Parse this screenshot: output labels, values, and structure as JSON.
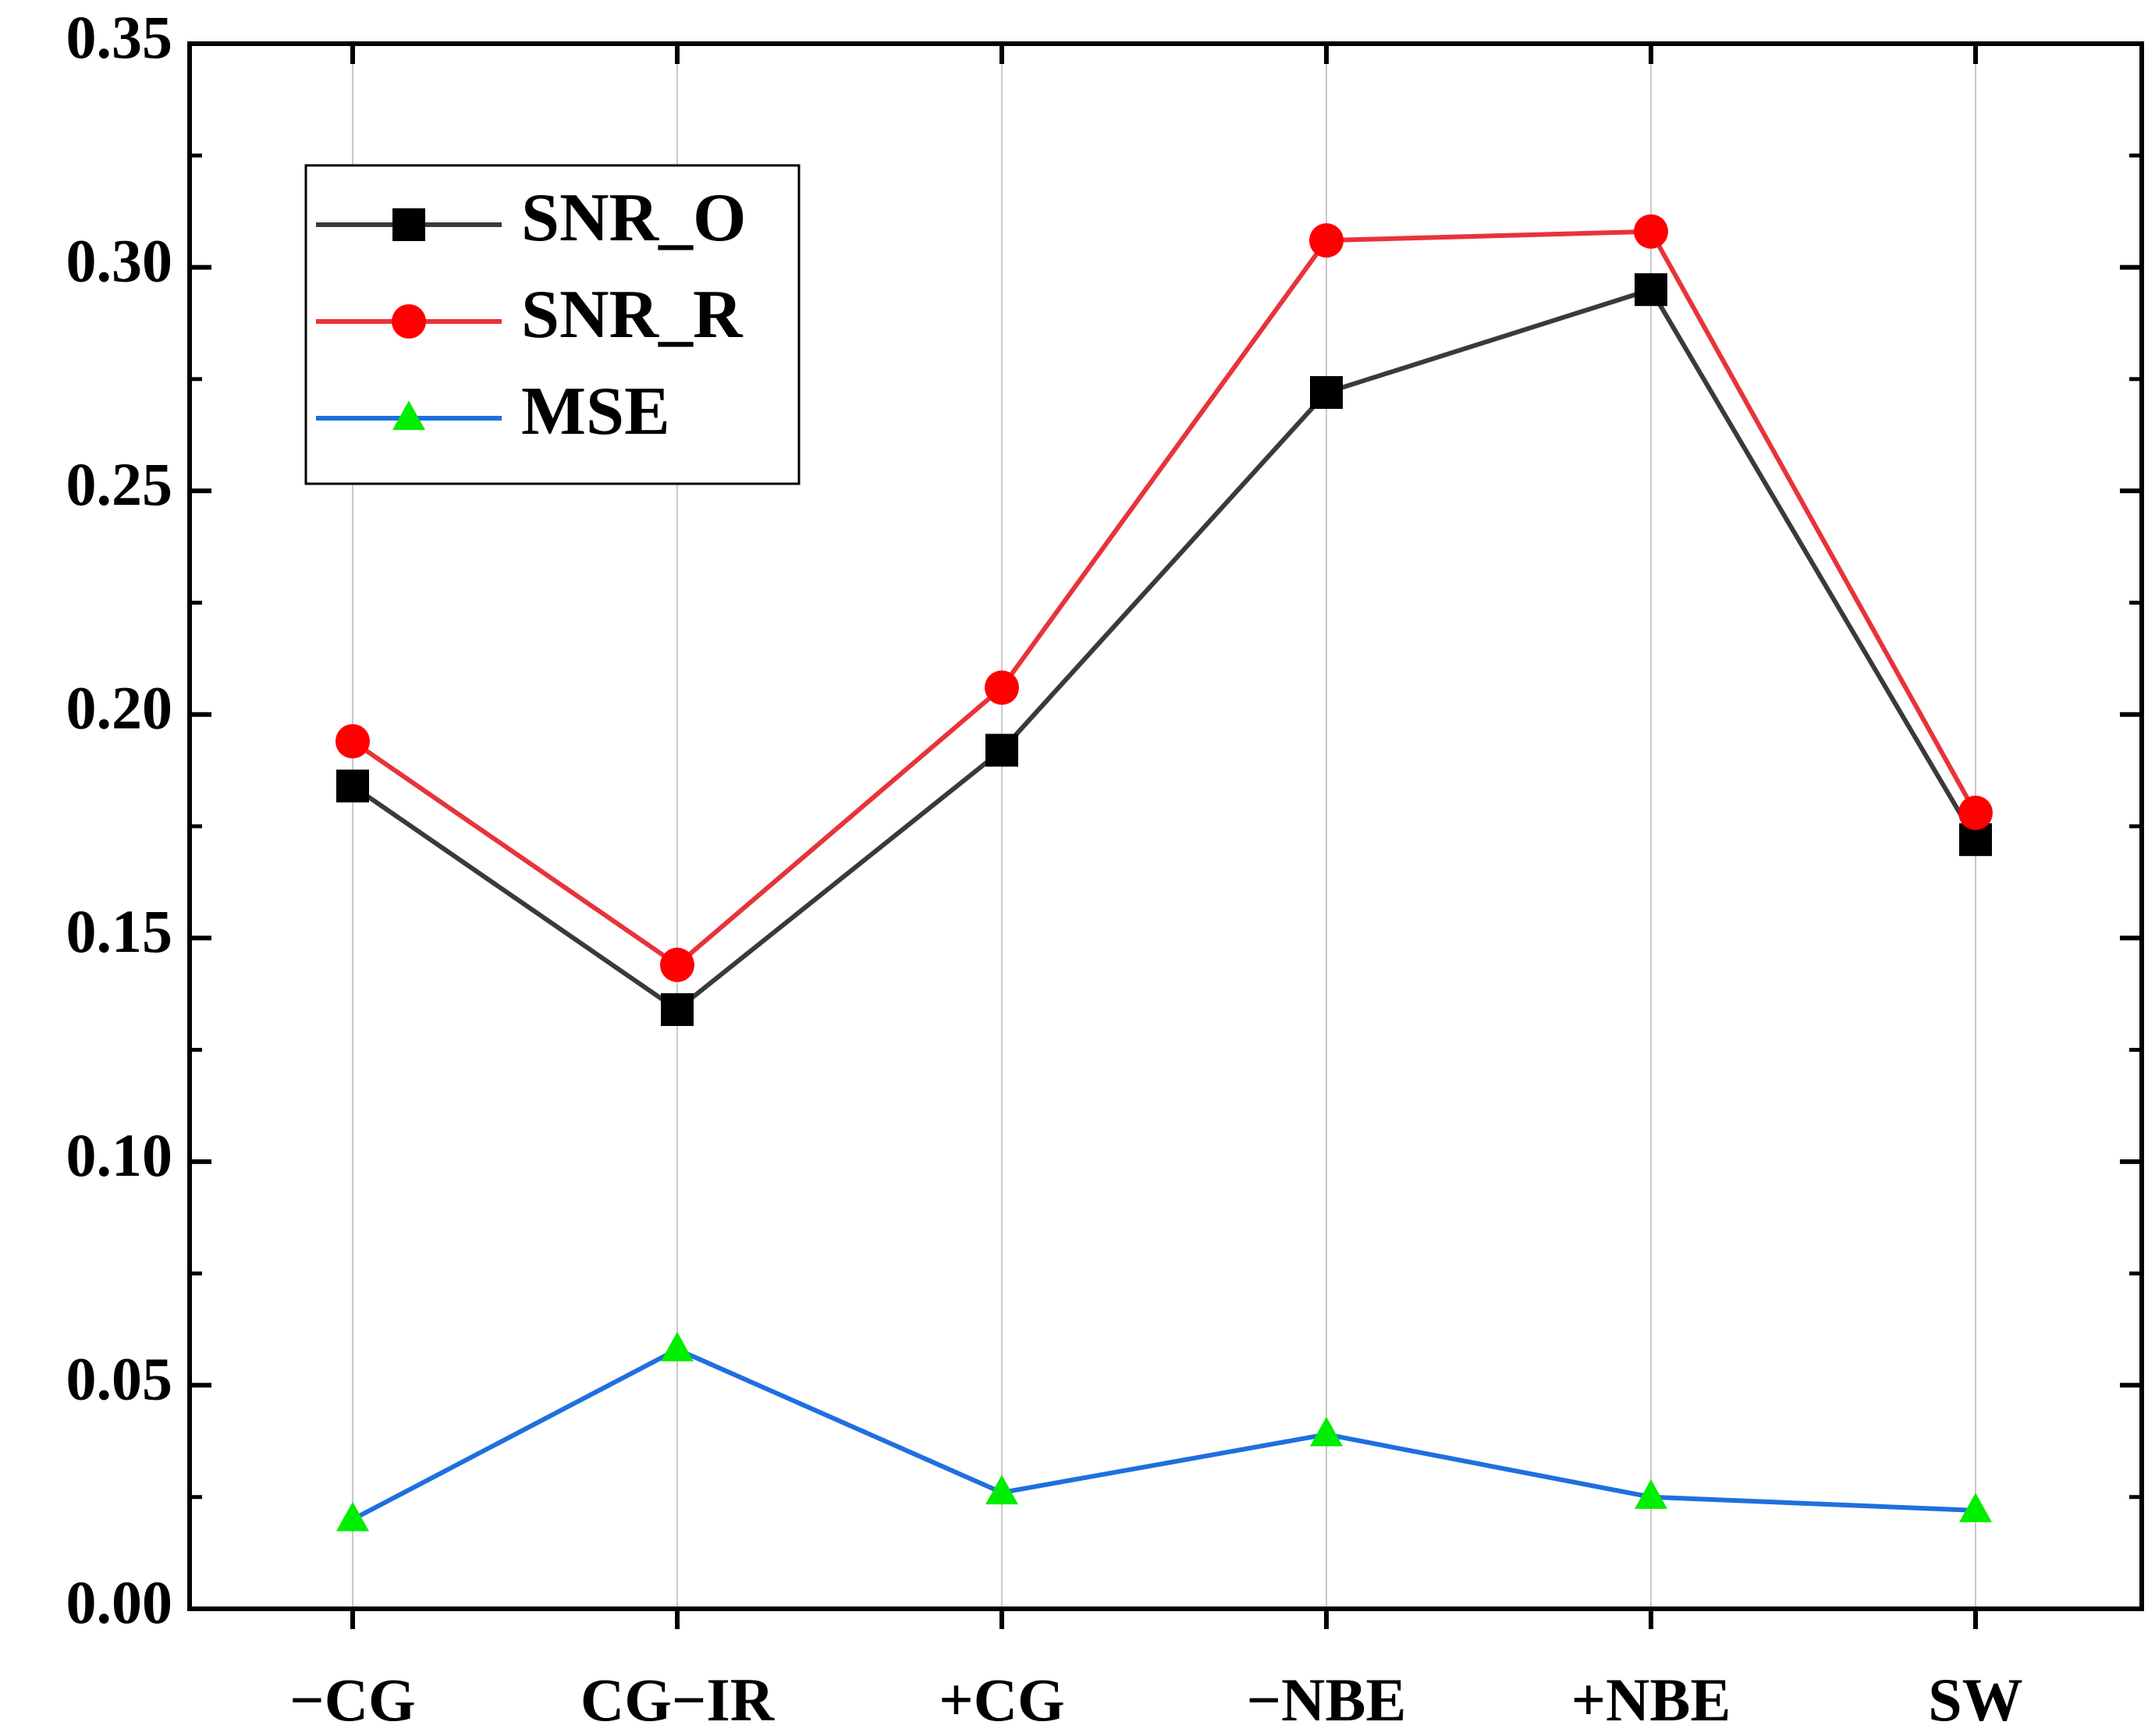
{
  "chart_data": {
    "type": "line",
    "title": "",
    "xlabel": "",
    "ylabel": "",
    "categories": [
      "−CG",
      "CG−IR",
      "+CG",
      "−NBE",
      "+NBE",
      "SW"
    ],
    "ylim": [
      0,
      0.35
    ],
    "yticks": [
      "0.00",
      "0.05",
      "0.10",
      "0.15",
      "0.20",
      "0.25",
      "0.30",
      "0.35"
    ],
    "grid": "vertical",
    "legend_position": "top-left",
    "series": [
      {
        "name": "SNR_O",
        "marker": "square",
        "line_color": "#3a3a3a",
        "marker_color": "#000000",
        "values": [
          0.184,
          0.134,
          0.192,
          0.272,
          0.295,
          0.172
        ]
      },
      {
        "name": "SNR_R",
        "marker": "circle",
        "line_color": "#e8333a",
        "marker_color": "#ff0000",
        "values": [
          0.194,
          0.144,
          0.206,
          0.306,
          0.308,
          0.178
        ]
      },
      {
        "name": "MSE",
        "marker": "triangle",
        "line_color": "#1f6fe0",
        "marker_color": "#00ee00",
        "values": [
          0.02,
          0.058,
          0.026,
          0.039,
          0.025,
          0.022
        ]
      }
    ]
  }
}
